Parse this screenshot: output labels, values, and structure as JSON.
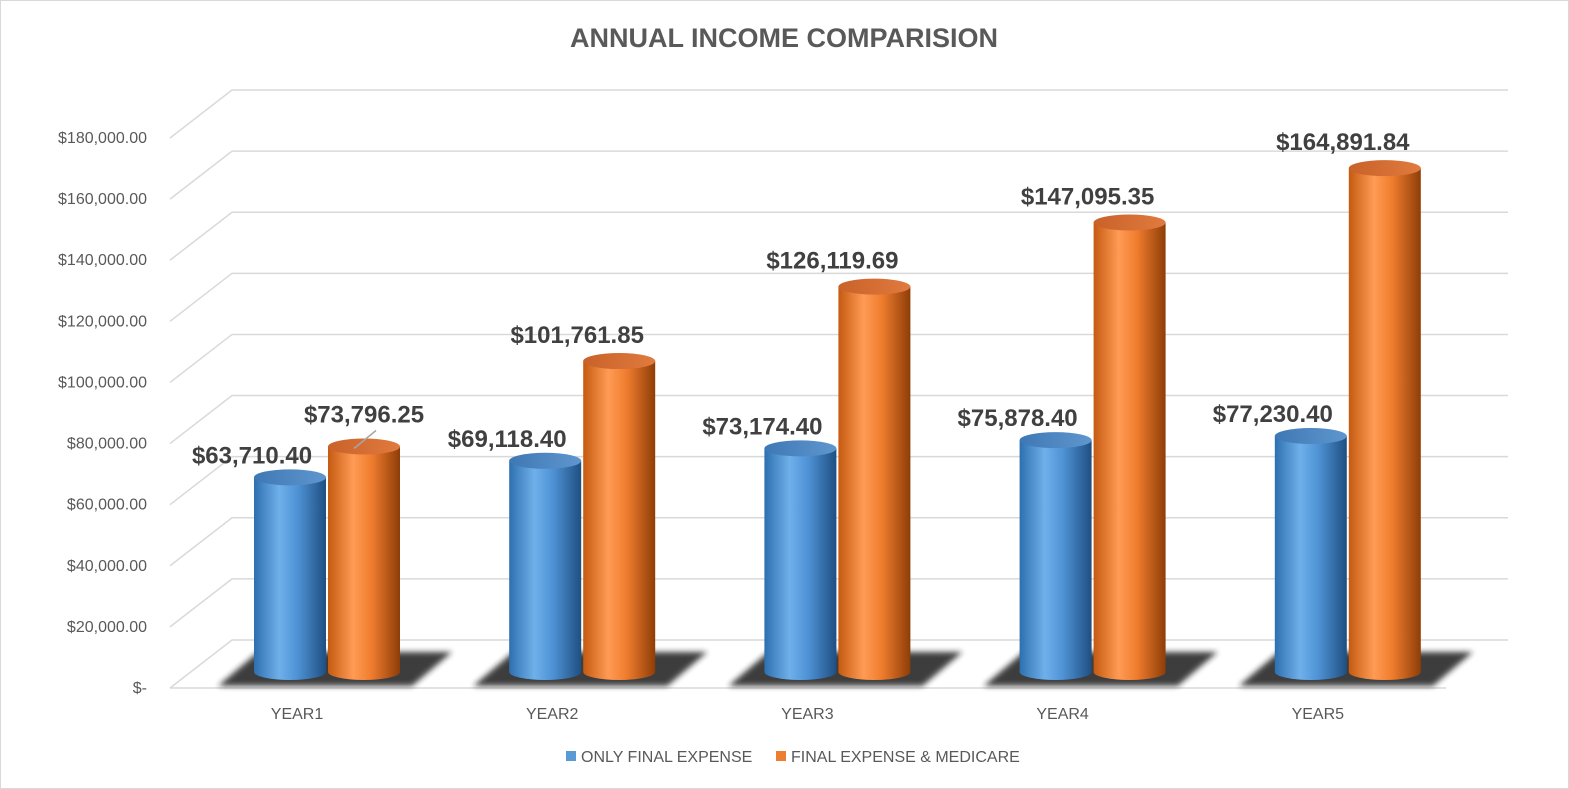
{
  "chart_data": {
    "type": "bar",
    "title": "ANNUAL INCOME COMPARISION",
    "categories": [
      "YEAR1",
      "YEAR2",
      "YEAR3",
      "YEAR4",
      "YEAR5"
    ],
    "series": [
      {
        "name": "ONLY FINAL EXPENSE",
        "color": "#5B9BD5",
        "values": [
          63710.4,
          69118.4,
          73174.4,
          75878.4,
          77230.4
        ],
        "labels": [
          "$63,710.40",
          "$69,118.40",
          "$73,174.40",
          "$75,878.40",
          "$77,230.40"
        ]
      },
      {
        "name": "FINAL EXPENSE & MEDICARE",
        "color": "#ED7D31",
        "values": [
          73796.25,
          101761.85,
          126119.69,
          147095.35,
          164891.84
        ],
        "labels": [
          "$73,796.25",
          "$101,761.85",
          "$126,119.69",
          "$147,095.35",
          "$164,891.84"
        ]
      }
    ],
    "ylim": [
      0,
      180000
    ],
    "yticks": [
      0,
      20000,
      40000,
      60000,
      80000,
      100000,
      120000,
      140000,
      160000,
      180000
    ],
    "ytick_labels": [
      "$-",
      "$20,000.00",
      "$40,000.00",
      "$60,000.00",
      "$80,000.00",
      "$100,000.00",
      "$120,000.00",
      "$140,000.00",
      "$160,000.00",
      "$180,000.00"
    ],
    "xlabel": "",
    "ylabel": "",
    "grid": true,
    "legend_position": "bottom",
    "style": "3d-cylinder"
  }
}
